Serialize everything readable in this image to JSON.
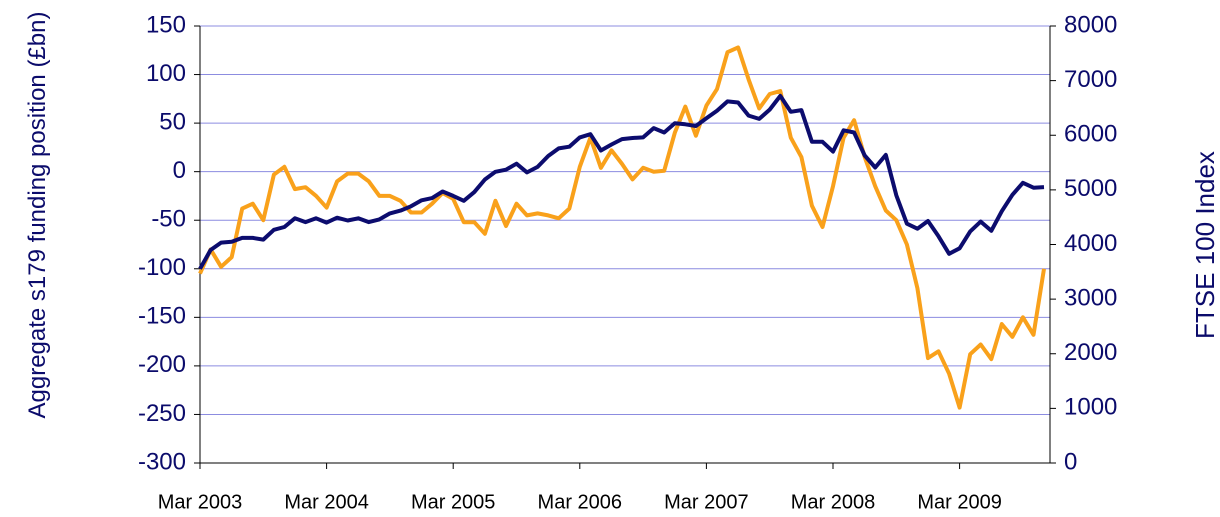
{
  "chart_data": {
    "type": "line",
    "y_label": "Aggregate s179 funding position (£bn)",
    "y2_label": "FTSE 100 Index",
    "categories": [
      "Mar 2003",
      null,
      null,
      null,
      null,
      null,
      null,
      null,
      null,
      null,
      null,
      null,
      "Mar 2004",
      null,
      null,
      null,
      null,
      null,
      null,
      null,
      null,
      null,
      null,
      null,
      "Mar 2005",
      null,
      null,
      null,
      null,
      null,
      null,
      null,
      null,
      null,
      null,
      null,
      "Mar 2006",
      null,
      null,
      null,
      null,
      null,
      null,
      null,
      null,
      null,
      null,
      null,
      "Mar 2007",
      null,
      null,
      null,
      null,
      null,
      null,
      null,
      null,
      null,
      null,
      null,
      "Mar 2008",
      null,
      null,
      null,
      null,
      null,
      null,
      null,
      null,
      null,
      null,
      null,
      "Mar 2009",
      null,
      null,
      null,
      null,
      null,
      null,
      null,
      null
    ],
    "series": [
      {
        "color": "#f9a11b",
        "values": [
          -105,
          -80,
          -98,
          -88,
          -38,
          -33,
          -50,
          -3,
          5,
          -18,
          -16,
          -25,
          -37,
          -10,
          -2,
          -2,
          -10,
          -25,
          -25,
          -30,
          -42,
          -42,
          -33,
          -22,
          -28,
          -52,
          -52,
          -64,
          -30,
          -56,
          -33,
          -45,
          -43,
          -45,
          -48,
          -38,
          5,
          35,
          4,
          22,
          8,
          -8,
          4,
          0,
          1,
          40,
          67,
          37,
          68,
          85,
          123,
          128,
          95,
          65,
          80,
          83,
          35,
          15,
          -35,
          -57,
          -15,
          35,
          53,
          15,
          -15,
          -40,
          -50,
          -75,
          -120,
          -192,
          -185,
          -208,
          -243,
          -188,
          -178,
          -193,
          -157,
          -170,
          -150,
          -168,
          -100
        ]
      },
      {
        "color": "#0c0c6e",
        "axis": "y2",
        "values": [
          3556,
          3900,
          4035,
          4050,
          4120,
          4120,
          4090,
          4270,
          4320,
          4480,
          4410,
          4480,
          4400,
          4490,
          4440,
          4480,
          4410,
          4460,
          4570,
          4620,
          4700,
          4810,
          4850,
          4970,
          4890,
          4800,
          4960,
          5190,
          5330,
          5370,
          5480,
          5320,
          5420,
          5620,
          5760,
          5790,
          5960,
          6020,
          5720,
          5830,
          5930,
          5950,
          5960,
          6130,
          6050,
          6220,
          6200,
          6170,
          6310,
          6450,
          6620,
          6600,
          6360,
          6300,
          6470,
          6720,
          6430,
          6460,
          5880,
          5880,
          5700,
          6090,
          6050,
          5630,
          5410,
          5640,
          4900,
          4380,
          4290,
          4430,
          4150,
          3830,
          3930,
          4240,
          4420,
          4250,
          4610,
          4910,
          5130,
          5040,
          5050
        ]
      }
    ],
    "ylim": [
      -300,
      150
    ],
    "yticks": [
      -300,
      -250,
      -200,
      -150,
      -100,
      -50,
      0,
      50,
      100,
      150
    ],
    "y2lim": [
      0,
      8000
    ],
    "y2ticks": [
      0,
      1000,
      2000,
      3000,
      4000,
      5000,
      6000,
      7000,
      8000
    ],
    "grid": true
  }
}
